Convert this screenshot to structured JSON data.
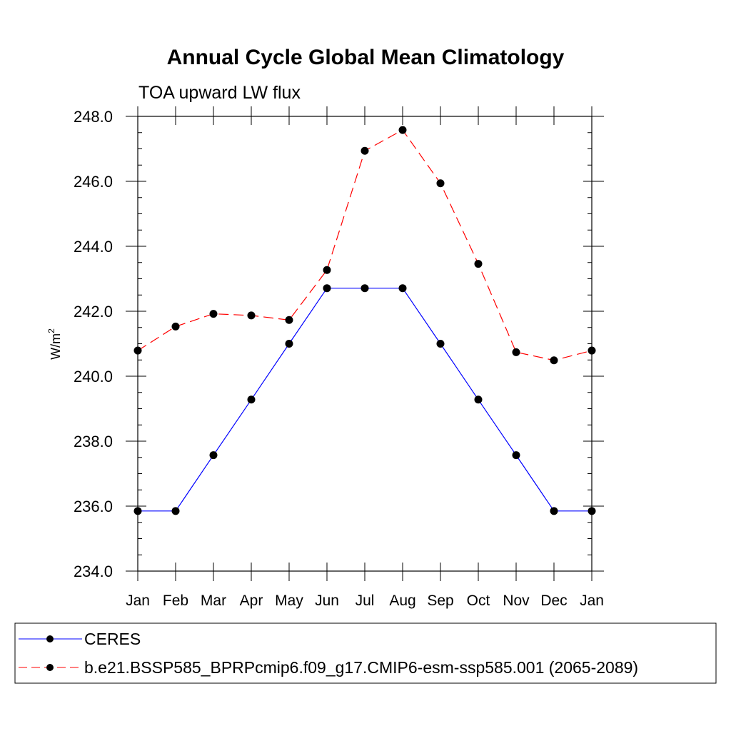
{
  "chart_data": {
    "type": "line",
    "title": "Annual Cycle Global Mean Climatology",
    "subtitle": "TOA upward LW flux",
    "ylabel": "W/m",
    "ylabel_superscript": "2",
    "xlabel": "",
    "categories": [
      "Jan",
      "Feb",
      "Mar",
      "Apr",
      "May",
      "Jun",
      "Jul",
      "Aug",
      "Sep",
      "Oct",
      "Nov",
      "Dec",
      "Jan"
    ],
    "ylim": [
      234.0,
      248.0
    ],
    "yticks": [
      "234.0",
      "236.0",
      "238.0",
      "240.0",
      "242.0",
      "244.0",
      "246.0",
      "248.0"
    ],
    "ytick_values": [
      234,
      236,
      238,
      240,
      242,
      244,
      246,
      248
    ],
    "y_minor_step": 0.5,
    "series": [
      {
        "name": "CERES",
        "color": "#0000ff",
        "style": "solid",
        "values": [
          235.85,
          235.85,
          237.57,
          239.28,
          241.0,
          242.71,
          242.71,
          242.71,
          241.0,
          239.28,
          237.57,
          235.85,
          235.85
        ]
      },
      {
        "name": "b.e21.BSSP585_BPRPcmip6.f09_g17.CMIP6-esm-ssp585.001 (2065-2089)",
        "color": "#ff0000",
        "style": "dashed",
        "values": [
          240.79,
          241.53,
          241.92,
          241.87,
          241.73,
          243.27,
          246.94,
          247.58,
          245.94,
          243.46,
          240.74,
          240.49,
          240.79
        ]
      }
    ],
    "legend_position": "bottom"
  }
}
